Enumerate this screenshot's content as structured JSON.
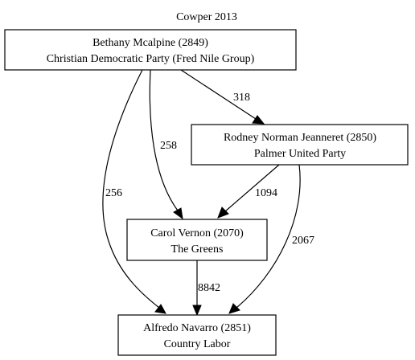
{
  "title": "Cowper 2013",
  "nodes": {
    "mcalpine": {
      "name": "Bethany Mcalpine (2849)",
      "party": "Christian Democratic Party (Fred Nile Group)"
    },
    "jeanneret": {
      "name": "Rodney Norman Jeanneret (2850)",
      "party": "Palmer United Party"
    },
    "vernon": {
      "name": "Carol Vernon (2070)",
      "party": "The Greens"
    },
    "navarro": {
      "name": "Alfredo Navarro (2851)",
      "party": "Country Labor"
    }
  },
  "edges": {
    "mcalpine_jeanneret": {
      "from": "Bethany Mcalpine (2849)",
      "to": "Rodney Norman Jeanneret (2850)",
      "label": "318"
    },
    "mcalpine_vernon": {
      "from": "Bethany Mcalpine (2849)",
      "to": "Carol Vernon (2070)",
      "label": "258"
    },
    "mcalpine_navarro": {
      "from": "Bethany Mcalpine (2849)",
      "to": "Alfredo Navarro (2851)",
      "label": "256"
    },
    "jeanneret_vernon": {
      "from": "Rodney Norman Jeanneret (2850)",
      "to": "Carol Vernon (2070)",
      "label": "1094"
    },
    "jeanneret_navarro": {
      "from": "Rodney Norman Jeanneret (2850)",
      "to": "Alfredo Navarro (2851)",
      "label": "2067"
    },
    "vernon_navarro": {
      "from": "Carol Vernon (2070)",
      "to": "Alfredo Navarro (2851)",
      "label": "8842"
    }
  }
}
